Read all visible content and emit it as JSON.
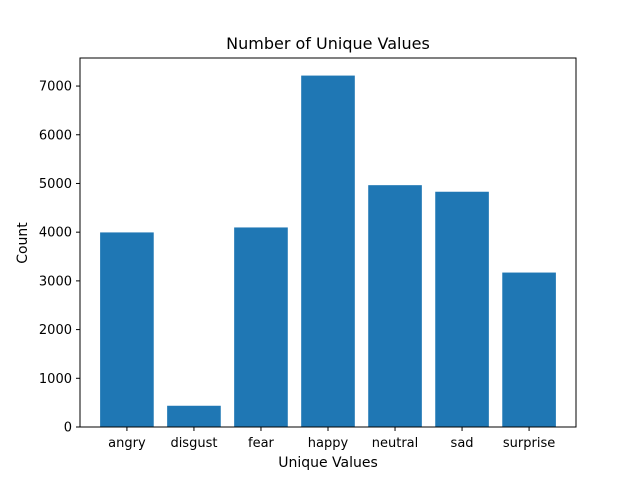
{
  "chart_data": {
    "type": "bar",
    "title": "Number of Unique Values",
    "xlabel": "Unique Values",
    "ylabel": "Count",
    "categories": [
      "angry",
      "disgust",
      "fear",
      "happy",
      "neutral",
      "sad",
      "surprise"
    ],
    "values": [
      3995,
      436,
      4097,
      7215,
      4965,
      4830,
      3171
    ],
    "ylim": [
      0,
      7576
    ],
    "yticks": [
      0,
      1000,
      2000,
      3000,
      4000,
      5000,
      6000,
      7000
    ],
    "grid": false,
    "bar_color": "#1f77b4"
  }
}
